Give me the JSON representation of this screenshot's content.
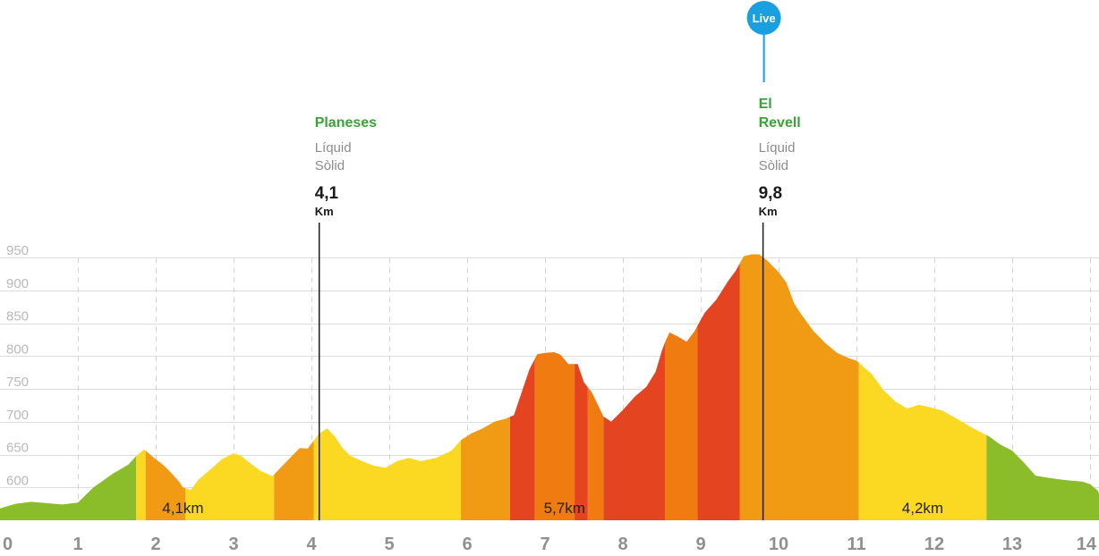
{
  "chart_data": {
    "type": "area",
    "xlim": [
      0,
      14
    ],
    "ylim": [
      550,
      960
    ],
    "yticks": [
      950,
      900,
      850,
      800,
      750,
      700,
      650,
      600
    ],
    "xticks": [
      "0",
      "1",
      "2",
      "3",
      "4",
      "5",
      "6",
      "7",
      "8",
      "9",
      "10",
      "11",
      "12",
      "13",
      "14"
    ],
    "grid": true,
    "profile": [
      [
        0,
        568
      ],
      [
        0.2,
        575
      ],
      [
        0.4,
        578
      ],
      [
        0.6,
        576
      ],
      [
        0.8,
        574
      ],
      [
        1.0,
        577
      ],
      [
        1.2,
        600
      ],
      [
        1.45,
        621
      ],
      [
        1.65,
        635
      ],
      [
        1.75,
        648
      ],
      [
        1.85,
        658
      ],
      [
        2.0,
        643
      ],
      [
        2.1,
        634
      ],
      [
        2.2,
        622
      ],
      [
        2.3,
        609
      ],
      [
        2.35,
        600
      ],
      [
        2.45,
        596
      ],
      [
        2.55,
        612
      ],
      [
        2.7,
        627
      ],
      [
        2.85,
        643
      ],
      [
        3.0,
        652
      ],
      [
        3.1,
        648
      ],
      [
        3.2,
        638
      ],
      [
        3.35,
        625
      ],
      [
        3.5,
        617
      ],
      [
        3.62,
        632
      ],
      [
        3.75,
        648
      ],
      [
        3.85,
        660
      ],
      [
        3.95,
        659
      ],
      [
        4.1,
        682
      ],
      [
        4.2,
        690
      ],
      [
        4.3,
        678
      ],
      [
        4.4,
        660
      ],
      [
        4.5,
        648
      ],
      [
        4.65,
        640
      ],
      [
        4.8,
        633
      ],
      [
        4.95,
        630
      ],
      [
        5.1,
        640
      ],
      [
        5.25,
        645
      ],
      [
        5.4,
        640
      ],
      [
        5.6,
        645
      ],
      [
        5.8,
        656
      ],
      [
        5.92,
        672
      ],
      [
        6.05,
        682
      ],
      [
        6.2,
        690
      ],
      [
        6.35,
        700
      ],
      [
        6.5,
        705
      ],
      [
        6.6,
        710
      ],
      [
        6.7,
        745
      ],
      [
        6.8,
        780
      ],
      [
        6.9,
        803
      ],
      [
        7.0,
        805
      ],
      [
        7.12,
        806
      ],
      [
        7.2,
        802
      ],
      [
        7.3,
        788
      ],
      [
        7.42,
        788
      ],
      [
        7.5,
        760
      ],
      [
        7.6,
        745
      ],
      [
        7.75,
        708
      ],
      [
        7.85,
        700
      ],
      [
        8.0,
        718
      ],
      [
        8.15,
        738
      ],
      [
        8.3,
        753
      ],
      [
        8.42,
        776
      ],
      [
        8.5,
        808
      ],
      [
        8.55,
        824
      ],
      [
        8.6,
        836
      ],
      [
        8.7,
        830
      ],
      [
        8.82,
        822
      ],
      [
        8.92,
        838
      ],
      [
        9.05,
        866
      ],
      [
        9.2,
        886
      ],
      [
        9.35,
        914
      ],
      [
        9.45,
        930
      ],
      [
        9.55,
        952
      ],
      [
        9.65,
        955
      ],
      [
        9.75,
        955
      ],
      [
        9.85,
        946
      ],
      [
        10.0,
        928
      ],
      [
        10.1,
        912
      ],
      [
        10.2,
        880
      ],
      [
        10.3,
        862
      ],
      [
        10.45,
        838
      ],
      [
        10.6,
        820
      ],
      [
        10.75,
        805
      ],
      [
        10.9,
        797
      ],
      [
        11.0,
        793
      ],
      [
        11.05,
        788
      ],
      [
        11.2,
        772
      ],
      [
        11.35,
        748
      ],
      [
        11.5,
        731
      ],
      [
        11.65,
        720
      ],
      [
        11.8,
        726
      ],
      [
        11.95,
        722
      ],
      [
        12.1,
        717
      ],
      [
        12.3,
        704
      ],
      [
        12.5,
        690
      ],
      [
        12.7,
        678
      ],
      [
        12.85,
        665
      ],
      [
        13.0,
        656
      ],
      [
        13.15,
        638
      ],
      [
        13.3,
        618
      ],
      [
        13.5,
        614
      ],
      [
        13.7,
        611
      ],
      [
        13.9,
        609
      ],
      [
        14.0,
        605
      ],
      [
        14.1,
        595
      ],
      [
        14.15,
        580
      ]
    ],
    "difficulty_segments": [
      {
        "from": 0,
        "to": 1.75,
        "color": "#8bbd2a"
      },
      {
        "from": 1.75,
        "to": 1.87,
        "color": "#fbd923"
      },
      {
        "from": 1.87,
        "to": 2.38,
        "color": "#f19b15"
      },
      {
        "from": 2.38,
        "to": 3.52,
        "color": "#fbd923"
      },
      {
        "from": 3.52,
        "to": 4.03,
        "color": "#f19b15"
      },
      {
        "from": 4.03,
        "to": 5.92,
        "color": "#fbd923"
      },
      {
        "from": 5.92,
        "to": 6.55,
        "color": "#f19b15"
      },
      {
        "from": 6.55,
        "to": 6.87,
        "color": "#e54420"
      },
      {
        "from": 6.87,
        "to": 7.38,
        "color": "#ef7b11"
      },
      {
        "from": 7.38,
        "to": 7.55,
        "color": "#e54420"
      },
      {
        "from": 7.55,
        "to": 7.75,
        "color": "#ef7b11"
      },
      {
        "from": 7.75,
        "to": 8.54,
        "color": "#e54420"
      },
      {
        "from": 8.54,
        "to": 8.96,
        "color": "#ef7b11"
      },
      {
        "from": 8.96,
        "to": 9.5,
        "color": "#e54420"
      },
      {
        "from": 9.5,
        "to": 11.03,
        "color": "#f19b15"
      },
      {
        "from": 11.03,
        "to": 12.67,
        "color": "#fbd923"
      },
      {
        "from": 12.67,
        "to": 14.2,
        "color": "#8bbd2a"
      }
    ],
    "segment_labels": [
      {
        "text": "4,1km",
        "x": 2.35
      },
      {
        "text": "5,7km",
        "x": 7.25
      },
      {
        "text": "4,2km",
        "x": 11.85
      }
    ],
    "waypoints": [
      {
        "x": 4.1,
        "name": [
          "Planeses"
        ],
        "sub": [
          "Líquid",
          "Sòlid"
        ],
        "km": "4,1",
        "unit": "Km",
        "live": ""
      },
      {
        "x": 9.8,
        "name": [
          "El",
          "Revell"
        ],
        "sub": [
          "Líquid",
          "Sòlid"
        ],
        "km": "9,8",
        "unit": "Km",
        "live": "Live"
      }
    ]
  }
}
